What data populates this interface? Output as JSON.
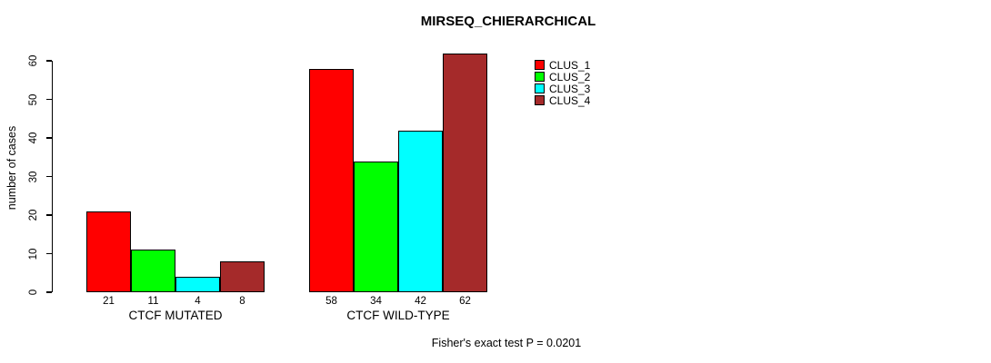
{
  "title": "MIRSEQ_CHIERARCHICAL",
  "footer_note": "Fisher's exact test P = 0.0201",
  "chart_data": {
    "type": "bar",
    "title": "MIRSEQ_CHIERARCHICAL",
    "xlabel": "",
    "ylabel": "number of cases",
    "ylim": [
      0,
      60
    ],
    "yticks": [
      0,
      10,
      20,
      30,
      40,
      50,
      60
    ],
    "grid": false,
    "legend_position": "top-right",
    "categories": [
      "CTCF MUTATED",
      "CTCF WILD-TYPE"
    ],
    "series": [
      {
        "name": "CLUS_1",
        "color": "#FF0000",
        "values": [
          21,
          58
        ]
      },
      {
        "name": "CLUS_2",
        "color": "#00FF00",
        "values": [
          11,
          34
        ]
      },
      {
        "name": "CLUS_3",
        "color": "#00FFFF",
        "values": [
          4,
          42
        ]
      },
      {
        "name": "CLUS_4",
        "color": "#A52A2A",
        "values": [
          8,
          62
        ]
      }
    ],
    "bar_value_labels": [
      [
        21,
        11,
        4,
        8
      ],
      [
        58,
        34,
        42,
        62
      ]
    ],
    "annotation": "Fisher's exact test P = 0.0201"
  }
}
